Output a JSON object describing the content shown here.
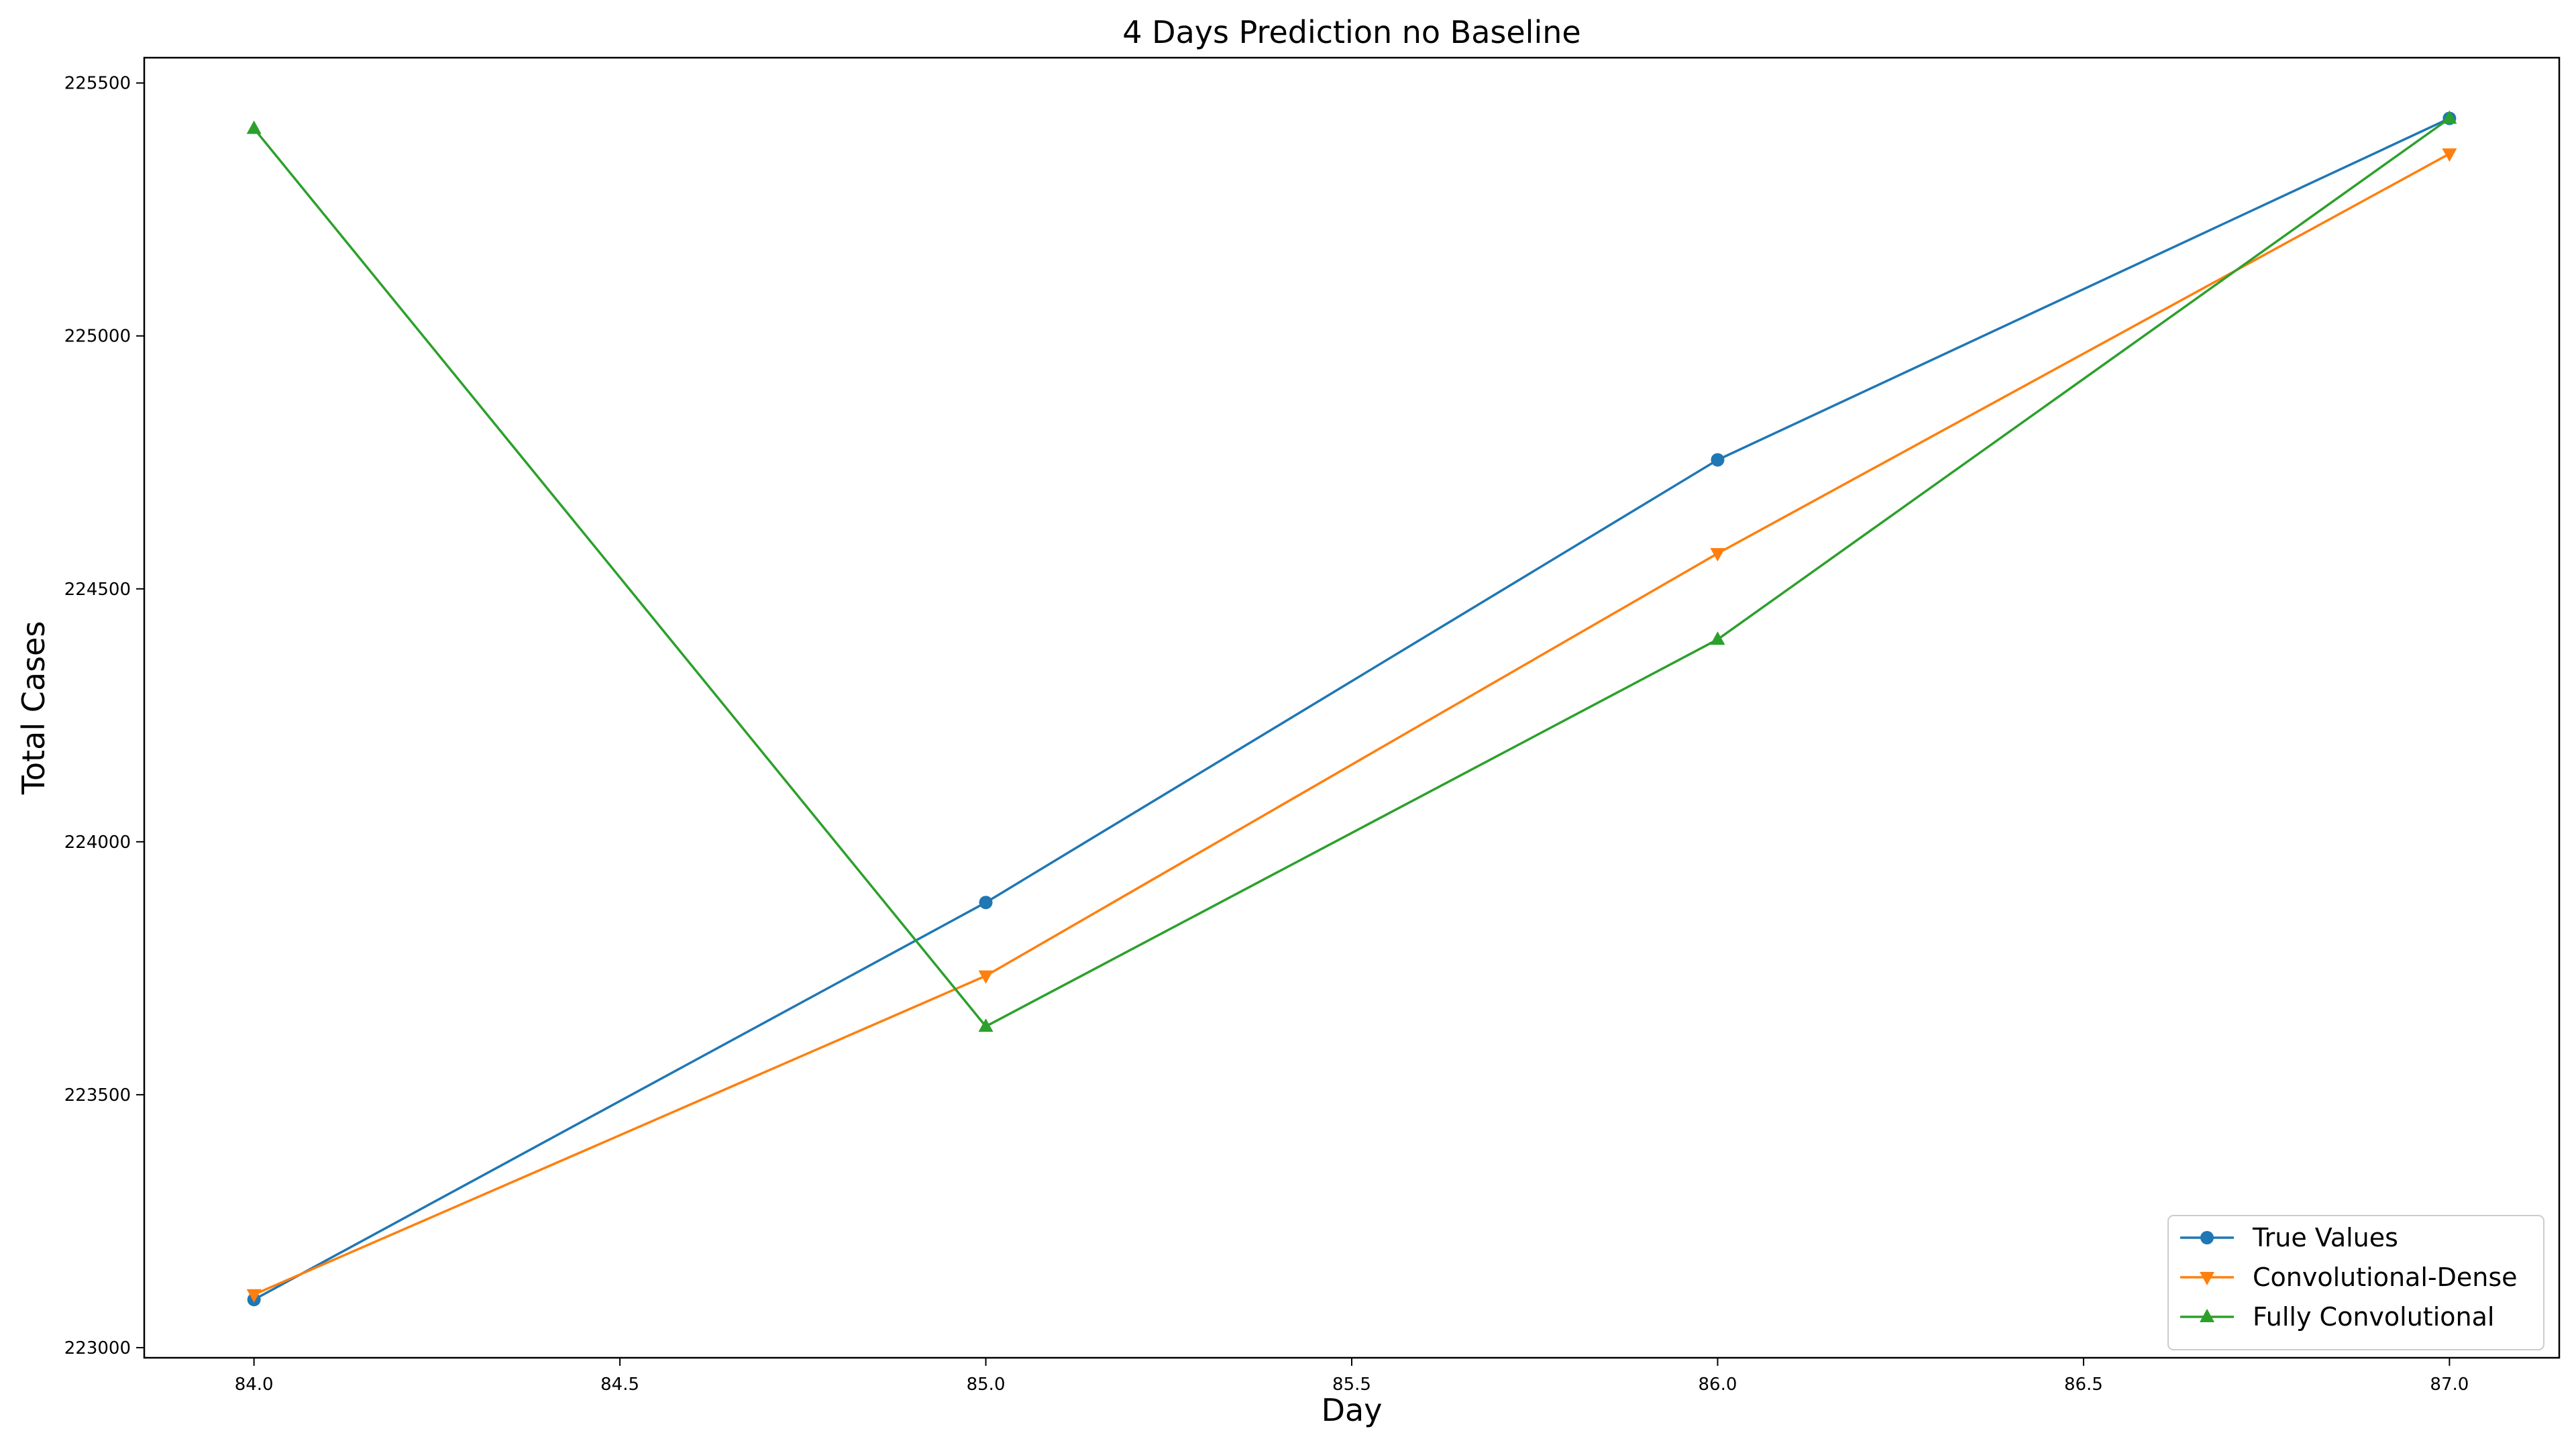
{
  "chart_data": {
    "type": "line",
    "title": "4 Days Prediction no Baseline",
    "xlabel": "Day",
    "ylabel": "Total Cases",
    "xlim": [
      83.85,
      87.15
    ],
    "ylim": [
      222980,
      225550
    ],
    "x_ticks": [
      84.0,
      84.5,
      85.0,
      85.5,
      86.0,
      86.5,
      87.0
    ],
    "x_tick_labels": [
      "84.0",
      "84.5",
      "85.0",
      "85.5",
      "86.0",
      "86.5",
      "87.0"
    ],
    "y_ticks": [
      223000,
      223500,
      224000,
      224500,
      225000,
      225500
    ],
    "y_tick_labels": [
      "223000",
      "223500",
      "224000",
      "224500",
      "225000",
      "225500"
    ],
    "grid": false,
    "legend_position": "lower right",
    "x": [
      84.0,
      85.0,
      86.0,
      87.0
    ],
    "series": [
      {
        "name": "True Values",
        "color": "#1f77b4",
        "marker": "circle",
        "values": [
          223095,
          223880,
          224755,
          225430
        ]
      },
      {
        "name": "Convolutional-Dense",
        "color": "#ff7f0e",
        "marker": "triangle-down",
        "values": [
          223105,
          223735,
          224570,
          225360
        ]
      },
      {
        "name": "Fully Convolutional",
        "color": "#2ca02c",
        "marker": "triangle-up",
        "values": [
          225410,
          223635,
          224400,
          225430
        ]
      }
    ]
  }
}
